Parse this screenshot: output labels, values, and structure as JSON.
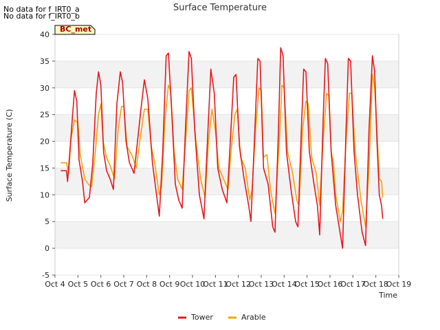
{
  "notes": [
    "No data for f_IRT0_a",
    "No data for f_IRT0_b"
  ],
  "site_badge": "BC_met",
  "chart_data": {
    "type": "line",
    "title": "Surface Temperature",
    "xlabel": "Time",
    "ylabel": "Surface Temperature (C)",
    "xlim": [
      4,
      19
    ],
    "ylim": [
      -5,
      40
    ],
    "yticks": [
      -5,
      0,
      5,
      10,
      15,
      20,
      25,
      30,
      35,
      40
    ],
    "xticks": [
      4,
      5,
      6,
      7,
      8,
      9,
      10,
      11,
      12,
      13,
      14,
      15,
      16,
      17,
      18,
      19
    ],
    "xtick_labels": [
      "Oct 4",
      "Oct 5",
      "Oct 6",
      "Oct 7",
      "Oct 8",
      "Oct 9",
      "Oct 10",
      "Oct 11",
      "Oct 12",
      "Oct 13",
      "Oct 14",
      "Oct 15",
      "Oct 16",
      "Oct 17",
      "Oct 18",
      "Oct 19"
    ],
    "grid": true,
    "series": [
      {
        "name": "Tower",
        "color": "#e8151a",
        "points": [
          [
            4.25,
            14.5
          ],
          [
            4.5,
            14.5
          ],
          [
            4.55,
            12.5
          ],
          [
            4.7,
            21.0
          ],
          [
            4.85,
            29.5
          ],
          [
            4.95,
            27.5
          ],
          [
            5.05,
            16.5
          ],
          [
            5.2,
            12.5
          ],
          [
            5.3,
            8.5
          ],
          [
            5.5,
            9.5
          ],
          [
            5.65,
            16.0
          ],
          [
            5.8,
            29.0
          ],
          [
            5.9,
            33.0
          ],
          [
            6.0,
            30.5
          ],
          [
            6.12,
            18.0
          ],
          [
            6.25,
            14.5
          ],
          [
            6.4,
            13.0
          ],
          [
            6.55,
            11.0
          ],
          [
            6.7,
            27.0
          ],
          [
            6.85,
            33.0
          ],
          [
            6.95,
            31.0
          ],
          [
            7.1,
            20.0
          ],
          [
            7.25,
            16.0
          ],
          [
            7.45,
            14.0
          ],
          [
            7.6,
            20.0
          ],
          [
            7.75,
            26.0
          ],
          [
            7.9,
            31.5
          ],
          [
            8.05,
            28.0
          ],
          [
            8.25,
            16.0
          ],
          [
            8.4,
            11.0
          ],
          [
            8.55,
            6.0
          ],
          [
            8.7,
            18.0
          ],
          [
            8.85,
            36.0
          ],
          [
            8.95,
            36.5
          ],
          [
            9.1,
            25.0
          ],
          [
            9.25,
            12.0
          ],
          [
            9.4,
            9.0
          ],
          [
            9.55,
            7.5
          ],
          [
            9.7,
            23.0
          ],
          [
            9.85,
            36.8
          ],
          [
            9.95,
            35.5
          ],
          [
            10.1,
            22.0
          ],
          [
            10.3,
            10.0
          ],
          [
            10.5,
            5.5
          ],
          [
            10.65,
            20.0
          ],
          [
            10.8,
            33.5
          ],
          [
            10.95,
            29.0
          ],
          [
            11.1,
            15.0
          ],
          [
            11.3,
            11.0
          ],
          [
            11.5,
            8.5
          ],
          [
            11.65,
            20.0
          ],
          [
            11.8,
            32.0
          ],
          [
            11.9,
            32.5
          ],
          [
            12.05,
            19.0
          ],
          [
            12.25,
            13.0
          ],
          [
            12.45,
            8.0
          ],
          [
            12.55,
            5.0
          ],
          [
            12.7,
            20.0
          ],
          [
            12.85,
            35.5
          ],
          [
            12.95,
            35.0
          ],
          [
            13.1,
            15.0
          ],
          [
            13.3,
            12.0
          ],
          [
            13.5,
            4.0
          ],
          [
            13.6,
            3.0
          ],
          [
            13.75,
            22.0
          ],
          [
            13.85,
            37.5
          ],
          [
            13.95,
            36.0
          ],
          [
            14.1,
            18.0
          ],
          [
            14.3,
            11.0
          ],
          [
            14.5,
            5.0
          ],
          [
            14.6,
            4.0
          ],
          [
            14.75,
            22.0
          ],
          [
            14.85,
            33.5
          ],
          [
            14.95,
            33.0
          ],
          [
            15.1,
            18.0
          ],
          [
            15.3,
            12.0
          ],
          [
            15.45,
            8.0
          ],
          [
            15.55,
            2.5
          ],
          [
            15.7,
            24.0
          ],
          [
            15.8,
            35.5
          ],
          [
            15.9,
            34.5
          ],
          [
            16.05,
            18.0
          ],
          [
            16.25,
            8.0
          ],
          [
            16.4,
            4.0
          ],
          [
            16.55,
            0.0
          ],
          [
            16.7,
            22.0
          ],
          [
            16.8,
            35.5
          ],
          [
            16.9,
            35.0
          ],
          [
            17.05,
            18.0
          ],
          [
            17.2,
            10.0
          ],
          [
            17.4,
            3.0
          ],
          [
            17.55,
            0.5
          ],
          [
            17.7,
            22.0
          ],
          [
            17.85,
            36.0
          ],
          [
            17.95,
            33.0
          ],
          [
            18.05,
            20.0
          ],
          [
            18.15,
            10.0
          ],
          [
            18.25,
            8.0
          ],
          [
            18.3,
            5.5
          ]
        ]
      },
      {
        "name": "Arable",
        "color": "#f6a300",
        "points": [
          [
            4.25,
            16.0
          ],
          [
            4.5,
            16.0
          ],
          [
            4.6,
            14.0
          ],
          [
            4.7,
            20.5
          ],
          [
            4.85,
            24.0
          ],
          [
            5.0,
            23.5
          ],
          [
            5.1,
            17.5
          ],
          [
            5.3,
            13.0
          ],
          [
            5.45,
            12.0
          ],
          [
            5.6,
            11.5
          ],
          [
            5.75,
            17.5
          ],
          [
            5.9,
            25.0
          ],
          [
            6.0,
            27.0
          ],
          [
            6.1,
            20.0
          ],
          [
            6.25,
            17.0
          ],
          [
            6.4,
            15.5
          ],
          [
            6.6,
            13.0
          ],
          [
            6.75,
            22.0
          ],
          [
            6.9,
            26.5
          ],
          [
            7.0,
            26.5
          ],
          [
            7.15,
            19.0
          ],
          [
            7.35,
            17.5
          ],
          [
            7.55,
            15.0
          ],
          [
            7.7,
            20.0
          ],
          [
            7.9,
            26.0
          ],
          [
            8.05,
            26.0
          ],
          [
            8.2,
            19.0
          ],
          [
            8.35,
            16.0
          ],
          [
            8.55,
            10.0
          ],
          [
            8.65,
            11.5
          ],
          [
            8.8,
            24.0
          ],
          [
            8.95,
            30.5
          ],
          [
            9.05,
            29.5
          ],
          [
            9.2,
            18.0
          ],
          [
            9.35,
            13.0
          ],
          [
            9.55,
            11.0
          ],
          [
            9.7,
            20.0
          ],
          [
            9.85,
            29.5
          ],
          [
            9.95,
            30.0
          ],
          [
            10.15,
            20.0
          ],
          [
            10.35,
            13.0
          ],
          [
            10.55,
            9.5
          ],
          [
            10.7,
            20.0
          ],
          [
            10.85,
            26.0
          ],
          [
            11.0,
            22.0
          ],
          [
            11.15,
            15.0
          ],
          [
            11.35,
            13.0
          ],
          [
            11.55,
            11.0
          ],
          [
            11.7,
            19.0
          ],
          [
            11.85,
            25.0
          ],
          [
            11.95,
            26.0
          ],
          [
            12.1,
            17.0
          ],
          [
            12.3,
            15.0
          ],
          [
            12.5,
            9.0
          ],
          [
            12.6,
            11.0
          ],
          [
            12.75,
            22.0
          ],
          [
            12.9,
            30.0
          ],
          [
            13.0,
            29.5
          ],
          [
            13.1,
            17.0
          ],
          [
            13.25,
            17.5
          ],
          [
            13.4,
            11.0
          ],
          [
            13.6,
            6.5
          ],
          [
            13.8,
            21.0
          ],
          [
            13.9,
            30.5
          ],
          [
            14.0,
            30.0
          ],
          [
            14.15,
            18.0
          ],
          [
            14.35,
            14.5
          ],
          [
            14.55,
            9.0
          ],
          [
            14.65,
            8.0
          ],
          [
            14.8,
            22.0
          ],
          [
            14.95,
            27.5
          ],
          [
            15.05,
            27.0
          ],
          [
            15.2,
            17.0
          ],
          [
            15.4,
            14.0
          ],
          [
            15.55,
            8.0
          ],
          [
            15.7,
            20.0
          ],
          [
            15.85,
            29.0
          ],
          [
            15.95,
            28.5
          ],
          [
            16.05,
            18.0
          ],
          [
            16.15,
            16.0
          ],
          [
            16.25,
            10.0
          ],
          [
            16.45,
            5.0
          ],
          [
            16.55,
            7.0
          ],
          [
            16.7,
            20.0
          ],
          [
            16.85,
            29.0
          ],
          [
            16.95,
            29.0
          ],
          [
            17.1,
            18.0
          ],
          [
            17.2,
            14.5
          ],
          [
            17.35,
            9.0
          ],
          [
            17.55,
            4.0
          ],
          [
            17.7,
            15.0
          ],
          [
            17.85,
            32.5
          ],
          [
            17.95,
            30.0
          ],
          [
            18.05,
            22.0
          ],
          [
            18.15,
            13.0
          ],
          [
            18.25,
            12.5
          ],
          [
            18.3,
            9.5
          ]
        ]
      }
    ]
  }
}
